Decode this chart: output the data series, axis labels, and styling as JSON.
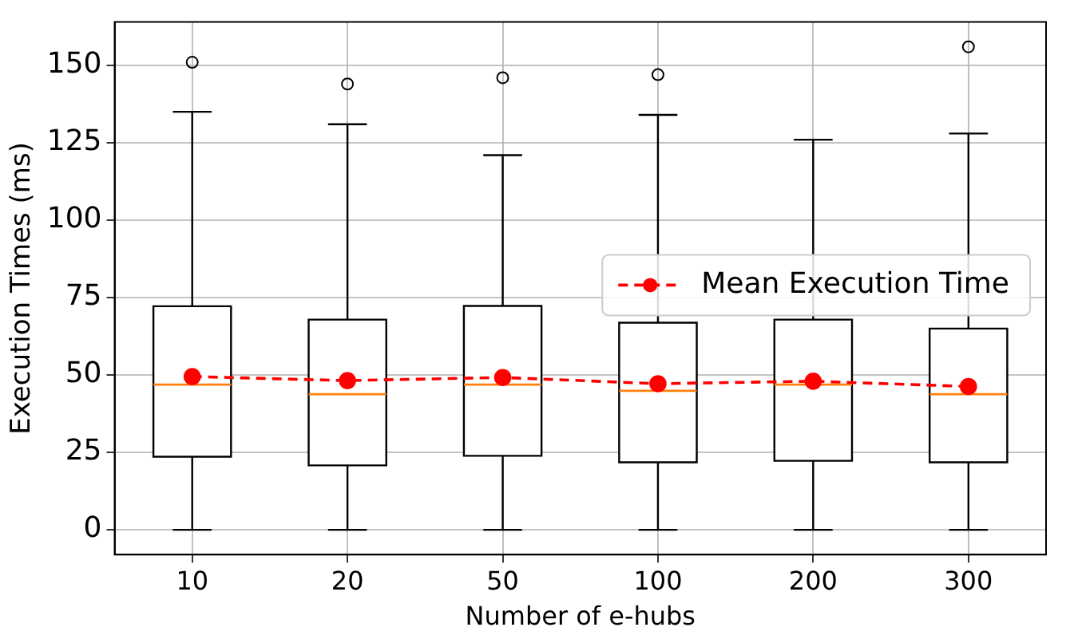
{
  "chart_data": {
    "type": "box",
    "xlabel": "Number of e-hubs",
    "ylabel": "Execution Times (ms)",
    "categories": [
      "10",
      "20",
      "50",
      "100",
      "200",
      "300"
    ],
    "boxes": [
      {
        "low": 0,
        "q1": 23.6,
        "median": 46.9,
        "q3": 72.2,
        "high": 135,
        "outliers": [
          151
        ]
      },
      {
        "low": 0,
        "q1": 20.8,
        "median": 43.8,
        "q3": 67.9,
        "high": 131,
        "outliers": [
          144
        ]
      },
      {
        "low": 0,
        "q1": 23.9,
        "median": 46.9,
        "q3": 72.3,
        "high": 121,
        "outliers": [
          146
        ]
      },
      {
        "low": 0,
        "q1": 21.8,
        "median": 44.9,
        "q3": 66.9,
        "high": 134,
        "outliers": [
          147
        ]
      },
      {
        "low": 0,
        "q1": 22.3,
        "median": 46.9,
        "q3": 67.9,
        "high": 126
      },
      {
        "low": 0,
        "q1": 21.8,
        "median": 43.8,
        "q3": 65,
        "high": 128,
        "outliers": [
          156
        ]
      }
    ],
    "series": [
      {
        "name": "Mean Execution Time",
        "type": "line",
        "color": "#ff0000",
        "values": [
          49.5,
          48.2,
          49.2,
          47.2,
          48.0,
          46.3
        ]
      }
    ],
    "marker": "circle",
    "line_style": "dashed",
    "ylim": [
      -8,
      164
    ],
    "yticks": [
      0,
      25,
      50,
      75,
      100,
      125,
      150
    ],
    "grid": true,
    "legend": "right"
  }
}
